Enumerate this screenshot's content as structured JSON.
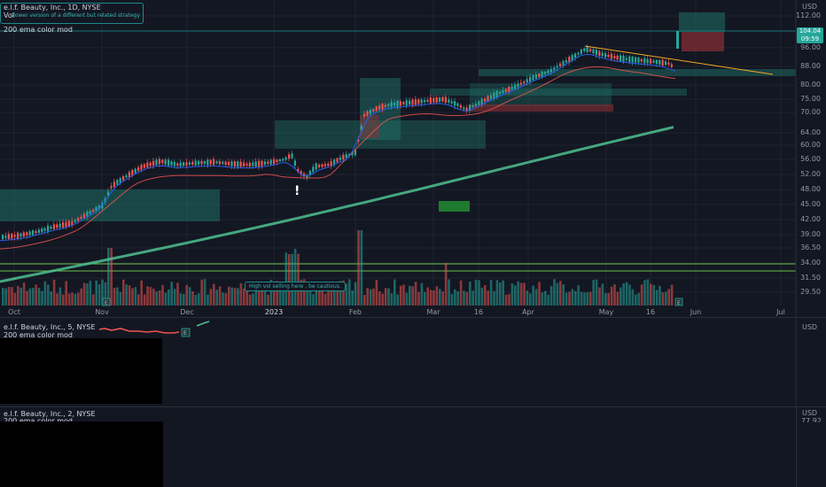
{
  "main_pane": {
    "title": "e.l.f. Beauty, Inc., 1D, NYSE",
    "vol_label": "Vol",
    "strategy_note": "slower version of a different but related strategy",
    "indicator_label": "200 ema color mod",
    "currency": "USD",
    "last_price": "104.04",
    "countdown": "09:59",
    "annotation_exclamation": "!",
    "caution_note": "High vol selling here , be cautious.",
    "price_ticks": [
      "112.00",
      "96.00",
      "88.00",
      "80.00",
      "75.00",
      "70.00",
      "64.00",
      "60.00",
      "56.00",
      "52.00",
      "48.00",
      "45.00",
      "42.00",
      "39.00",
      "36.50",
      "34.00",
      "31.50",
      "29.50"
    ],
    "month_ticks": [
      "Oct",
      "Nov",
      "Dec",
      "2023",
      "Feb",
      "Mar",
      "16",
      "Apr",
      "May",
      "16",
      "Jun",
      "Jul"
    ],
    "earnings_marker": "E"
  },
  "pane2": {
    "title": "e.l.f. Beauty, Inc., 5, NYSE",
    "indicator_label": "200 ema color mod",
    "currency": "USD",
    "earnings_marker": "E"
  },
  "pane3": {
    "title": "e.l.f. Beauty, Inc., 2, NYSE",
    "indicator_label": "200 ema color mod",
    "currency": "USD",
    "partial_price": "77.92"
  },
  "colors": {
    "background": "#131722",
    "up": "#26a69a",
    "down": "#ef5350",
    "ema_200": "#4fbf8f",
    "fast_ema": "#2962ff",
    "slow_ema": "#ef5350",
    "zone_green": "#1f6f67",
    "zone_red": "#8b2f35",
    "trendline": "#f5a623",
    "support_line": "#6ec04f"
  }
}
